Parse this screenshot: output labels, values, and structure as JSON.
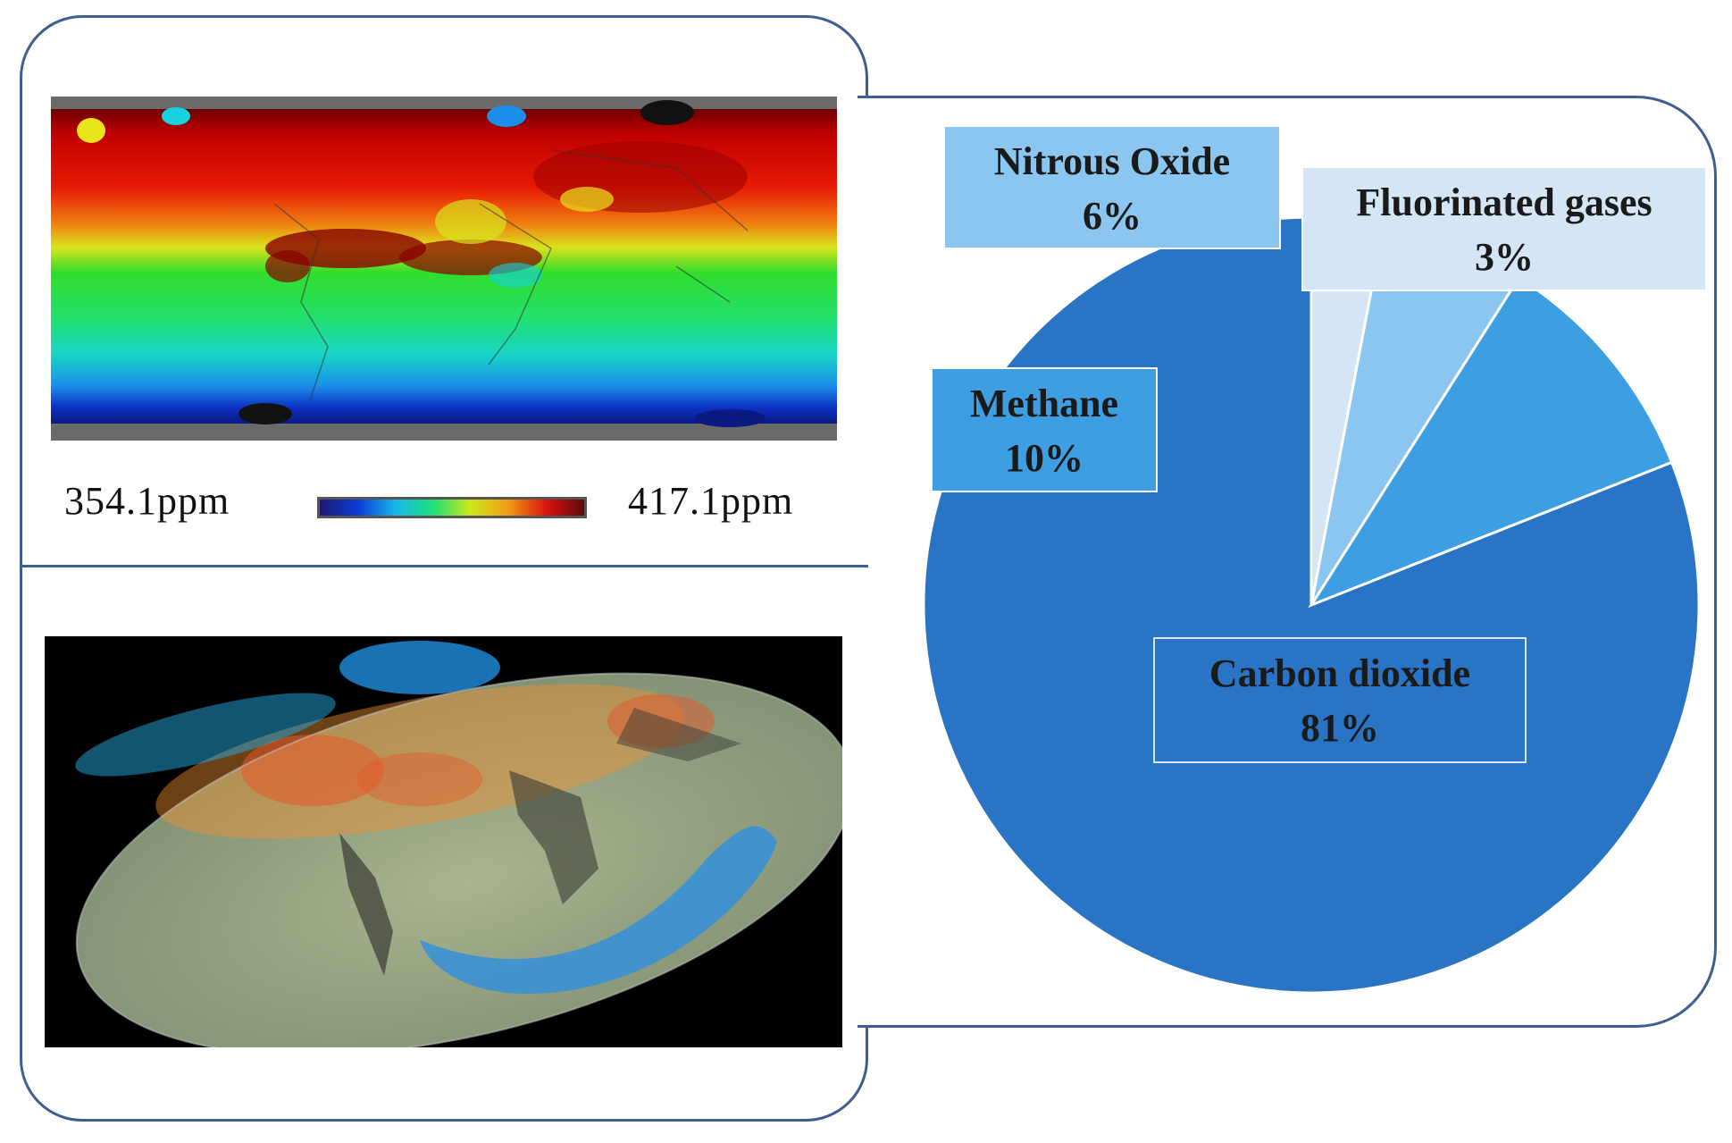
{
  "colorbar": {
    "min_label": "354.1ppm",
    "max_label": "417.1ppm",
    "stops": [
      "#1d1a6e",
      "#0b3bd8",
      "#17b7ea",
      "#1fe07a",
      "#cfe81a",
      "#f19a14",
      "#d8130f",
      "#5b0c0c"
    ]
  },
  "images": {
    "co2_map": "co2-concentration-map",
    "globe_map": "co2-globe-visualization"
  },
  "chart_data": {
    "type": "pie",
    "title": "",
    "slices": [
      {
        "label": "Carbon dioxide",
        "value": 81,
        "value_label": "81%",
        "color": "#2a74c5"
      },
      {
        "label": "Methane",
        "value": 10,
        "value_label": "10%",
        "color": "#3d9ee2"
      },
      {
        "label": "Nitrous Oxide",
        "value": 6,
        "value_label": "6%",
        "color": "#8ac6ef"
      },
      {
        "label": "Fluorinated gases",
        "value": 3,
        "value_label": "3%",
        "color": "#d4e5f5"
      }
    ],
    "start": "top, counter-clockwise from Carbon dioxide"
  }
}
